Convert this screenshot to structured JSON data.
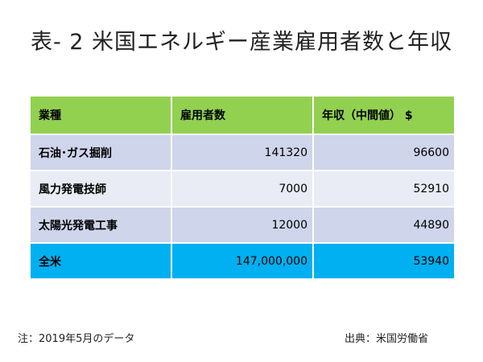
{
  "title": "表- 2 米国エネルギー産業雇用者数と年収",
  "table": {
    "headers": [
      "業種",
      "雇用者数",
      "年収（中間値） $"
    ],
    "rows": [
      [
        "石油･ガス掘削",
        "141320",
        "96600"
      ],
      [
        "風力発電技師",
        "7000",
        "52910"
      ],
      [
        "太陽光発電工事",
        "12000",
        "44890"
      ],
      [
        "全米",
        "147,000,000",
        "53940"
      ]
    ]
  },
  "footer": {
    "note": "注：2019年5月のデータ",
    "source": "出典：米国労働省"
  },
  "colors": {
    "header_bg": "#92d050",
    "row_odd_bg": "#cfd5ea",
    "row_even_bg": "#e9ebf5",
    "total_row_bg": "#00b0f0"
  }
}
